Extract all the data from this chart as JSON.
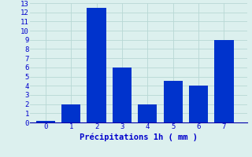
{
  "categories": [
    0,
    1,
    2,
    3,
    4,
    5,
    6,
    7
  ],
  "values": [
    0.2,
    2.0,
    12.5,
    6.0,
    2.0,
    4.5,
    4.0,
    9.0
  ],
  "bar_color": "#0033CC",
  "bar_edge_color": "#0044DD",
  "background_color": "#DCF0EE",
  "grid_color": "#B8D8D4",
  "xlabel": "Précipitations 1h ( mm )",
  "xlabel_color": "#0000CC",
  "tick_color": "#0000CC",
  "axis_line_color": "#0000AA",
  "ylim": [
    0,
    13
  ],
  "yticks": [
    0,
    1,
    2,
    3,
    4,
    5,
    6,
    7,
    8,
    9,
    10,
    11,
    12,
    13
  ],
  "xlim": [
    -0.6,
    7.9
  ],
  "xticks": [
    0,
    1,
    2,
    3,
    4,
    5,
    6,
    7
  ],
  "bar_width": 0.75,
  "figsize": [
    3.2,
    2.0
  ],
  "dpi": 100
}
